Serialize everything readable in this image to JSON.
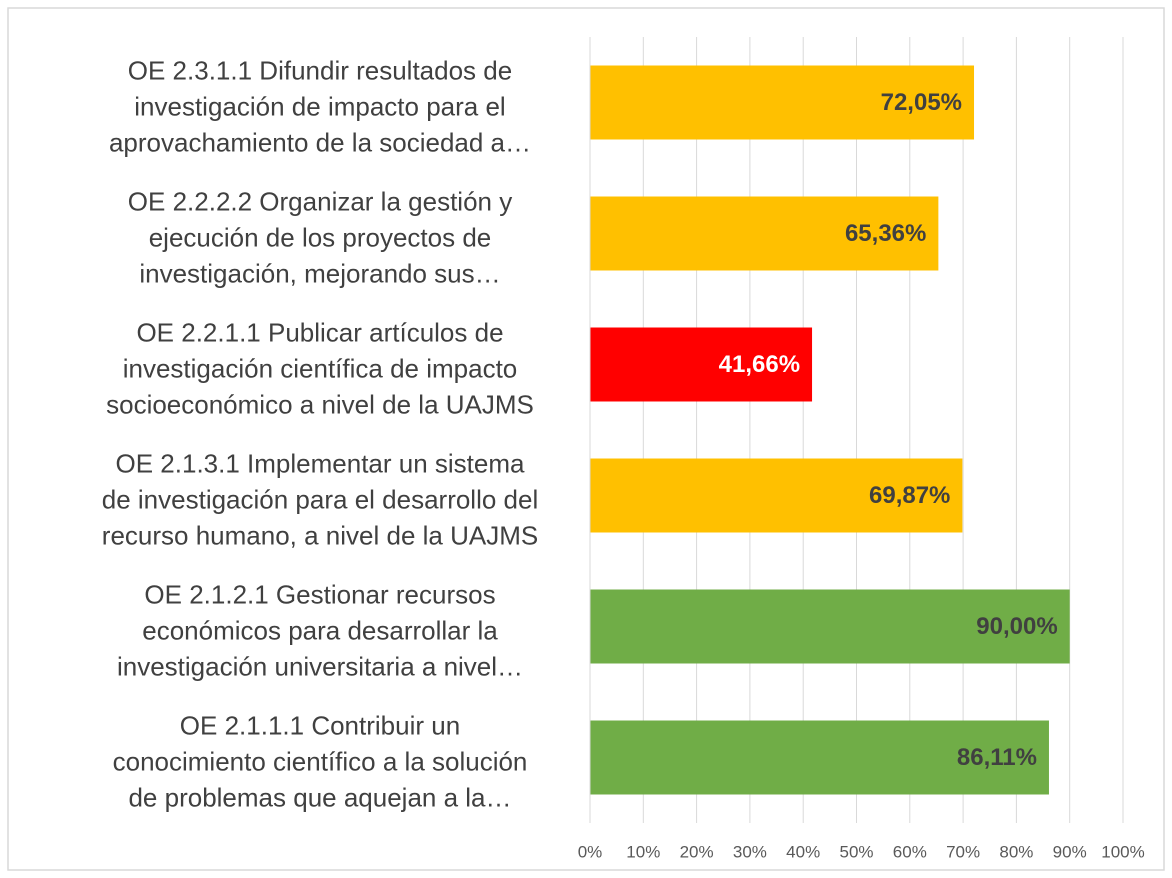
{
  "chart_data": {
    "type": "hbar",
    "categories": [
      [
        "OE 2.3.1.1 Difundir resultados de",
        "investigación de impacto para el",
        "aprovachamiento de la sociedad a…"
      ],
      [
        "OE 2.2.2.2 Organizar la gestión y",
        "ejecución de los proyectos de",
        "investigación, mejorando sus…"
      ],
      [
        "OE 2.2.1.1 Publicar artículos de",
        "investigación científica de impacto",
        "socioeconómico a nivel de la UAJMS"
      ],
      [
        "OE 2.1.3.1 Implementar un sistema",
        "de investigación para el desarrollo del",
        "recurso humano, a nivel de la UAJMS"
      ],
      [
        "OE 2.1.2.1 Gestionar recursos",
        "económicos para desarrollar la",
        "investigación universitaria a nivel…"
      ],
      [
        "OE 2.1.1.1 Contribuir un",
        "conocimiento científico a la solución",
        "de problemas que aquejan a la…"
      ]
    ],
    "values": [
      72.05,
      65.36,
      41.66,
      69.87,
      90.0,
      86.11
    ],
    "value_labels": [
      "72,05%",
      "65,36%",
      "41,66%",
      "69,87%",
      "90,00%",
      "86,11%"
    ],
    "colors": [
      "#FFC000",
      "#FFC000",
      "#FF0000",
      "#FFC000",
      "#70AD47",
      "#70AD47"
    ],
    "value_label_colors": [
      "#404040",
      "#404040",
      "#FFFFFF",
      "#404040",
      "#404040",
      "#404040"
    ],
    "xlim": [
      0,
      100
    ],
    "xticks": [
      {
        "value": 0,
        "label": "0%"
      },
      {
        "value": 10,
        "label": "10%"
      },
      {
        "value": 20,
        "label": "20%"
      },
      {
        "value": 30,
        "label": "30%"
      },
      {
        "value": 40,
        "label": "40%"
      },
      {
        "value": 50,
        "label": "50%"
      },
      {
        "value": 60,
        "label": "60%"
      },
      {
        "value": 70,
        "label": "70%"
      },
      {
        "value": 80,
        "label": "80%"
      },
      {
        "value": 90,
        "label": "90%"
      },
      {
        "value": 100,
        "label": "100%"
      }
    ],
    "grid": true
  }
}
